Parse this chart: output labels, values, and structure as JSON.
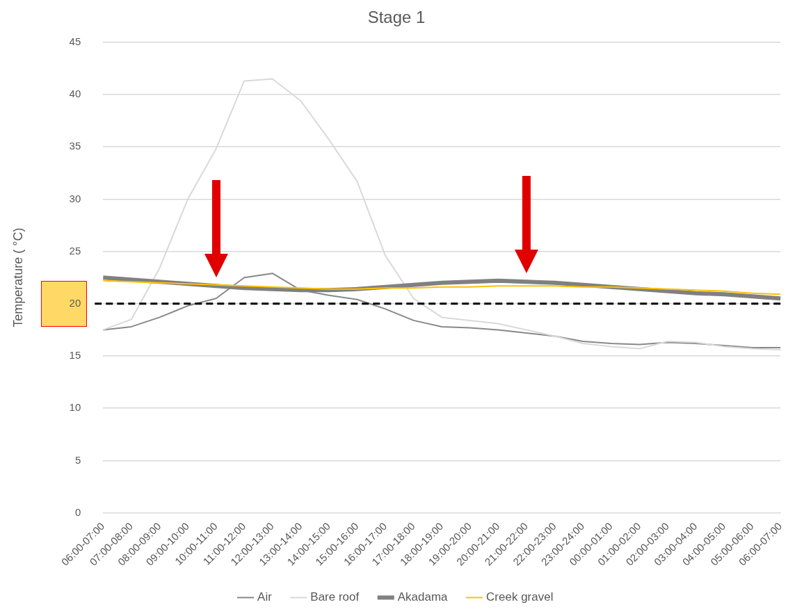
{
  "chart_data": {
    "type": "line",
    "title": "Stage 1",
    "ylabel": "Temperature ( °C)",
    "categories": [
      "06:00-07:00",
      "07:00-08:00",
      "08:00-09:00",
      "09:00-10:00",
      "10:00-11:00",
      "11:00-12:00",
      "12:00-13:00",
      "13:00-14:00",
      "14:00-15:00",
      "15:00-16:00",
      "16:00-17:00",
      "17:00-18:00",
      "18:00-19:00",
      "19:00-20:00",
      "20:00-21:00",
      "21:00-22:00",
      "22:00-23:00",
      "23:00-24:00",
      "00:00-01:00",
      "01:00-02:00",
      "02:00-03:00",
      "03:00-04:00",
      "04:00-05:00",
      "05:00-06:00",
      "06:00-07:00"
    ],
    "series": [
      {
        "name": "Air",
        "color": "#888888",
        "values": [
          17.5,
          17.8,
          18.7,
          19.8,
          20.5,
          22.5,
          22.9,
          21.3,
          20.8,
          20.4,
          19.5,
          18.4,
          17.8,
          17.7,
          17.5,
          17.2,
          16.9,
          16.4,
          16.2,
          16.1,
          16.3,
          16.2,
          16.0,
          15.8,
          15.8
        ]
      },
      {
        "name": "Bare roof",
        "color": "#d9d9d9",
        "values": [
          17.5,
          18.5,
          23.4,
          30.0,
          34.8,
          41.3,
          41.5,
          39.4,
          35.7,
          31.7,
          24.6,
          20.5,
          18.7,
          18.4,
          18.1,
          17.5,
          16.9,
          16.2,
          15.9,
          15.7,
          16.4,
          16.3,
          15.9,
          15.7,
          15.6
        ]
      },
      {
        "name": "Akadama",
        "color": "#808080",
        "values": [
          22.5,
          22.3,
          22.1,
          21.9,
          21.7,
          21.5,
          21.4,
          21.3,
          21.3,
          21.4,
          21.6,
          21.8,
          22.0,
          22.1,
          22.2,
          22.1,
          22.0,
          21.8,
          21.6,
          21.4,
          21.2,
          21.0,
          20.9,
          20.7,
          20.5
        ]
      },
      {
        "name": "Creek gravel",
        "color": "#ffc000",
        "values": [
          22.2,
          22.1,
          22.0,
          21.9,
          21.8,
          21.7,
          21.6,
          21.5,
          21.4,
          21.4,
          21.5,
          21.5,
          21.6,
          21.6,
          21.7,
          21.7,
          21.7,
          21.6,
          21.6,
          21.5,
          21.4,
          21.3,
          21.2,
          21.0,
          20.9
        ]
      }
    ],
    "ylim": [
      0,
      45
    ],
    "yticks": [
      0,
      5,
      10,
      15,
      20,
      25,
      30,
      35,
      40,
      45
    ],
    "grid": "y",
    "legend": "bottom",
    "marker": "none",
    "line_style": "solid",
    "ref_lines": [
      {
        "axis": "y",
        "value": 20,
        "color": "#000000",
        "line_style": "dashed"
      }
    ]
  }
}
